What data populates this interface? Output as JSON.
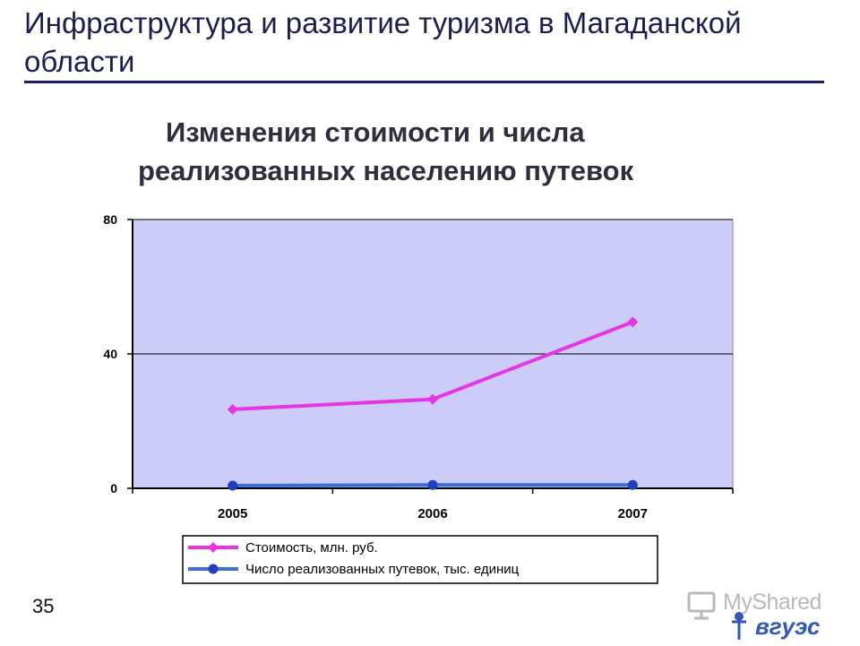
{
  "slide": {
    "title": "Инфраструктура и развитие туризма в Магаданской области",
    "page_number": "35",
    "watermark": "MyShared"
  },
  "chart_data": {
    "type": "line",
    "title_line1": "Изменения стоимости и числа",
    "title_line2": "реализованных населению путевок",
    "categories": [
      "2005",
      "2006",
      "2007"
    ],
    "series": [
      {
        "name": "Стоимость, млн. руб.",
        "values": [
          23.5,
          26.5,
          49.5
        ],
        "color": "#e535e5",
        "marker": "diamond"
      },
      {
        "name": "Число реализованных путевок, тыс. единиц",
        "values": [
          0.8,
          1.0,
          1.0
        ],
        "color": "#3a6fd8",
        "marker": "circle"
      }
    ],
    "ylim": [
      0,
      80
    ],
    "yticks": [
      "0",
      "40",
      "80"
    ],
    "xlabel": "",
    "ylabel": "",
    "grid": true,
    "plot_background": "#ccccf8",
    "legend_position": "bottom"
  }
}
